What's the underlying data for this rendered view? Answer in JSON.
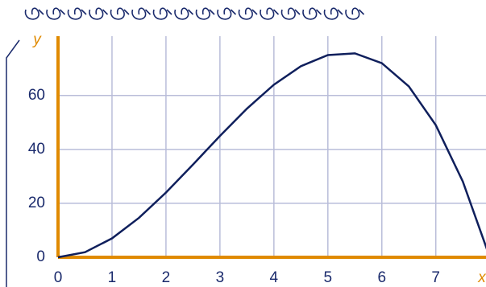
{
  "chart_data": {
    "type": "line",
    "x_label": "x",
    "y_label": "y",
    "x": [
      0,
      0.5,
      1,
      1.5,
      2,
      2.5,
      3,
      3.5,
      4,
      4.5,
      5,
      5.5,
      6,
      6.5,
      7,
      7.5,
      8
    ],
    "series": [
      {
        "color": "#0f1f5c",
        "values": [
          0,
          1.875,
          7,
          14.625,
          24,
          34.375,
          45,
          55.125,
          64,
          70.875,
          75,
          75.625,
          72,
          63.375,
          49,
          28.125,
          0
        ]
      }
    ],
    "xlim": [
      0,
      7.93
    ],
    "ylim": [
      0,
      82
    ],
    "xticks": [
      0,
      1,
      2,
      3,
      4,
      5,
      6,
      7
    ],
    "yticks": [
      0,
      20,
      40,
      60
    ],
    "grid": true,
    "axis_color": "#e08a00",
    "grid_color": "#b9bdd9"
  }
}
